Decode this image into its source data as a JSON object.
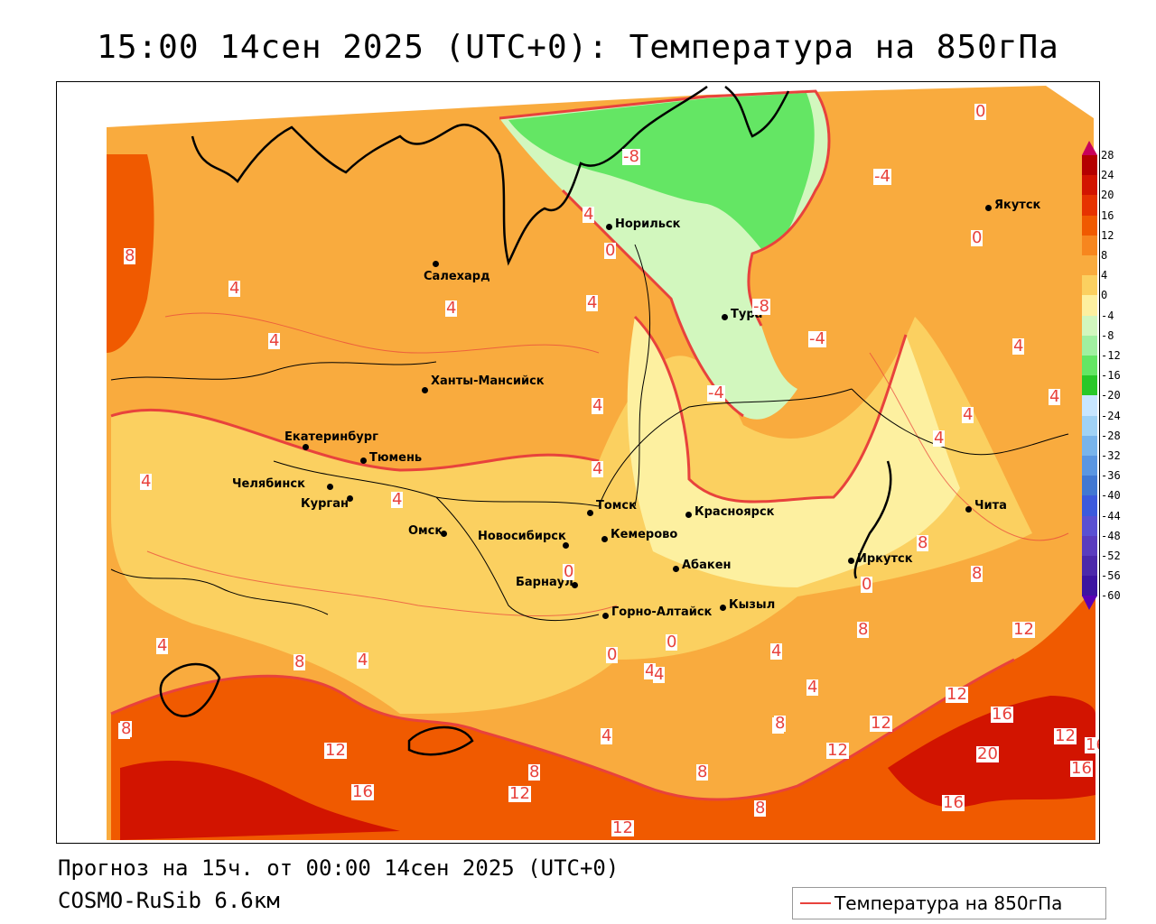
{
  "title": "15:00 14сен 2025 (UTC+0): Температура на 850гПа",
  "footer": {
    "forecast": "Прогноз на 15ч. от 00:00 14сен 2025 (UTC+0)",
    "model": "COSMO-RuSib 6.6км"
  },
  "legend": {
    "label": "Температура на 850гПа",
    "line_color": "#e8423c"
  },
  "colorbar": {
    "ticks": [
      "28",
      "24",
      "20",
      "16",
      "12",
      "8",
      "4",
      "0",
      "-4",
      "-8",
      "-12",
      "-16",
      "-20",
      "-24",
      "-28",
      "-32",
      "-36",
      "-40",
      "-44",
      "-48",
      "-52",
      "-56",
      "-60"
    ],
    "colors": [
      "#c8005a",
      "#b40000",
      "#d21400",
      "#e63200",
      "#f05a00",
      "#f7861e",
      "#f9ab3e",
      "#fbd060",
      "#fdf0a0",
      "#d2f7be",
      "#a0f0a0",
      "#64e664",
      "#28c828",
      "#c8e6ff",
      "#a0d2f5",
      "#78b4eb",
      "#5a96e1",
      "#4178d2",
      "#3c5adc",
      "#5a50d2",
      "#5a3cbe",
      "#4b28aa",
      "#3c14a0",
      "#5a00b4"
    ]
  },
  "cities": [
    {
      "name": "Норильск"
    },
    {
      "name": "Якутск"
    },
    {
      "name": "Салехард"
    },
    {
      "name": "Тура"
    },
    {
      "name": "Ханты-Мансийск"
    },
    {
      "name": "Екатеринбург"
    },
    {
      "name": "Тюмень"
    },
    {
      "name": "Челябинск"
    },
    {
      "name": "Курган"
    },
    {
      "name": "Омск"
    },
    {
      "name": "Новосибирск"
    },
    {
      "name": "Томск"
    },
    {
      "name": "Кемерово"
    },
    {
      "name": "Красноярск"
    },
    {
      "name": "Барнаул"
    },
    {
      "name": "Абакен"
    },
    {
      "name": "Горно-Алтайск"
    },
    {
      "name": "Кызыл"
    },
    {
      "name": "Иркутск"
    },
    {
      "name": "Чита"
    }
  ],
  "isotherm_labels": [
    "0",
    "-8",
    "-4",
    "4",
    "0",
    "0",
    "8",
    "4",
    "4",
    "4",
    "-8",
    "4",
    "-4",
    "-4",
    "4",
    "4",
    "4",
    "4",
    "4",
    "4",
    "4",
    "4",
    "8",
    "0",
    "0",
    "8",
    "8",
    "12",
    "4",
    "4",
    "8",
    "0",
    "0",
    "4",
    "4",
    "4",
    "4",
    "4",
    "8",
    "8",
    "12",
    "12",
    "16",
    "12",
    "12",
    "16",
    "20",
    "12",
    "16",
    "12",
    "16",
    "8",
    "8",
    "8",
    "12",
    "8",
    "12",
    "16",
    "8",
    "12"
  ]
}
